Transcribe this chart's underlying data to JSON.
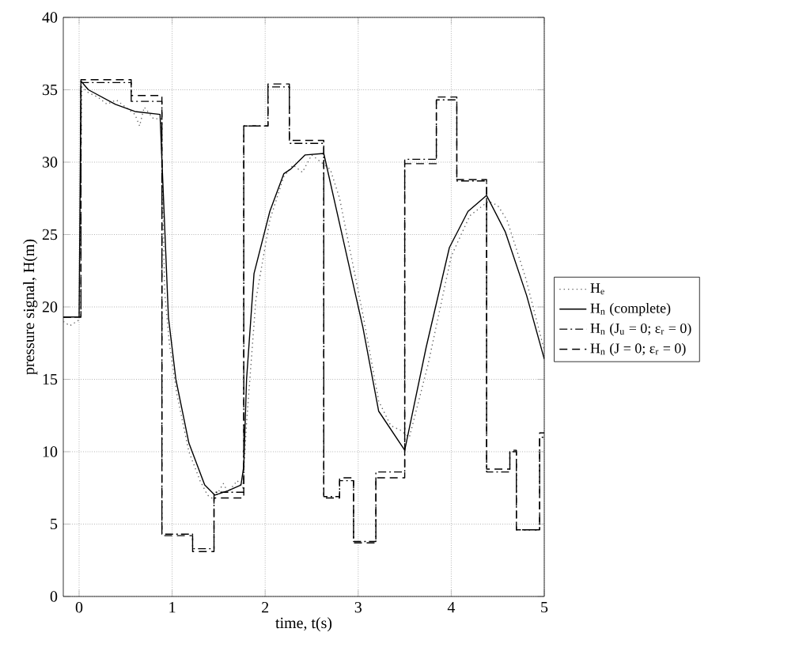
{
  "chart_data": {
    "type": "line",
    "xlabel": "time, t(s)",
    "ylabel": "pressure signal, H(m)",
    "xlim": [
      -0.17,
      5
    ],
    "ylim": [
      0,
      40
    ],
    "xticks": [
      0,
      1,
      2,
      3,
      4,
      5
    ],
    "yticks": [
      0,
      5,
      10,
      15,
      20,
      25,
      30,
      35,
      40
    ],
    "grid": true,
    "legend": "right",
    "marker": "none",
    "series": [
      {
        "name": "H$_{e}$",
        "color": "#666666",
        "line_style": "dotted",
        "x": [
          -0.17,
          -0.1,
          0.0,
          0.03,
          0.1,
          0.2,
          0.3,
          0.4,
          0.5,
          0.6,
          0.65,
          0.7,
          0.8,
          0.88,
          0.92,
          0.97,
          1.05,
          1.18,
          1.3,
          1.38,
          1.45,
          1.55,
          1.6,
          1.7,
          1.76,
          1.8,
          1.9,
          2.05,
          2.2,
          2.3,
          2.4,
          2.5,
          2.6,
          2.7,
          2.8,
          3.05,
          3.22,
          3.35,
          3.45,
          3.55,
          3.75,
          4.0,
          4.2,
          4.4,
          4.5,
          4.6,
          4.8,
          5.0
        ],
        "values": [
          19.0,
          18.7,
          19.1,
          35.2,
          34.8,
          34.5,
          34.0,
          34.3,
          33.8,
          33.3,
          32.5,
          33.8,
          33.0,
          33.0,
          21.0,
          17.5,
          14.0,
          10.0,
          8.0,
          7.0,
          6.7,
          7.8,
          7.2,
          8.0,
          7.5,
          12.0,
          20.5,
          26.0,
          29.0,
          29.8,
          29.3,
          30.5,
          30.0,
          29.5,
          27.5,
          19.5,
          13.5,
          11.8,
          11.5,
          11.0,
          16.0,
          23.5,
          26.3,
          27.3,
          27.0,
          26.0,
          22.0,
          17.0
        ]
      },
      {
        "name": "H$_{n}$ (complete)",
        "color": "#000000",
        "line_style": "solid",
        "x": [
          -0.17,
          0.0,
          0.02,
          0.1,
          0.39,
          0.6,
          0.87,
          0.96,
          1.04,
          1.18,
          1.35,
          1.46,
          1.6,
          1.74,
          1.77,
          1.8,
          1.88,
          2.05,
          2.2,
          2.27,
          2.43,
          2.63,
          2.77,
          3.05,
          3.22,
          3.5,
          3.73,
          3.98,
          4.18,
          4.38,
          4.58,
          4.81,
          5.0
        ],
        "values": [
          19.3,
          19.3,
          35.6,
          35.0,
          34.0,
          33.5,
          33.3,
          19.3,
          15.0,
          10.6,
          7.7,
          7.0,
          7.3,
          7.7,
          9.0,
          15.0,
          22.3,
          26.6,
          29.2,
          29.5,
          30.5,
          30.6,
          26.6,
          18.6,
          12.8,
          10.1,
          17.2,
          24.1,
          26.6,
          27.7,
          25.2,
          20.8,
          16.4
        ]
      },
      {
        "name": "H$_{n}$ (J$_{u}$ = 0; ε$_{r}$ = 0)",
        "type": "step",
        "color": "#000000",
        "line_style": "dashdot",
        "x": [
          -0.17,
          0.02,
          0.56,
          0.89,
          1.22,
          1.45,
          1.77,
          2.03,
          2.26,
          2.63,
          2.8,
          2.95,
          3.19,
          3.5,
          3.84,
          4.06,
          4.38,
          4.63,
          4.7,
          4.95,
          5.0
        ],
        "values": [
          19.3,
          35.5,
          34.2,
          4.3,
          3.3,
          7.2,
          32.5,
          35.2,
          31.3,
          6.9,
          8.0,
          3.8,
          8.6,
          30.2,
          34.3,
          28.7,
          8.6,
          10.0,
          4.6,
          11.0,
          11.0
        ]
      },
      {
        "name": "H$_{n}$ (J = 0; ε$_{r}$ = 0)",
        "type": "step",
        "color": "#000000",
        "line_style": "dashed",
        "x": [
          -0.17,
          0.02,
          0.56,
          0.89,
          1.22,
          1.45,
          1.77,
          2.03,
          2.26,
          2.63,
          2.8,
          2.95,
          3.19,
          3.5,
          3.84,
          4.06,
          4.38,
          4.63,
          4.7,
          4.95,
          5.0
        ],
        "values": [
          19.3,
          35.7,
          34.6,
          4.2,
          3.1,
          6.8,
          32.5,
          35.4,
          31.5,
          6.8,
          8.2,
          3.7,
          8.2,
          29.9,
          34.5,
          28.8,
          8.8,
          10.1,
          4.6,
          11.3,
          11.3
        ]
      }
    ]
  }
}
